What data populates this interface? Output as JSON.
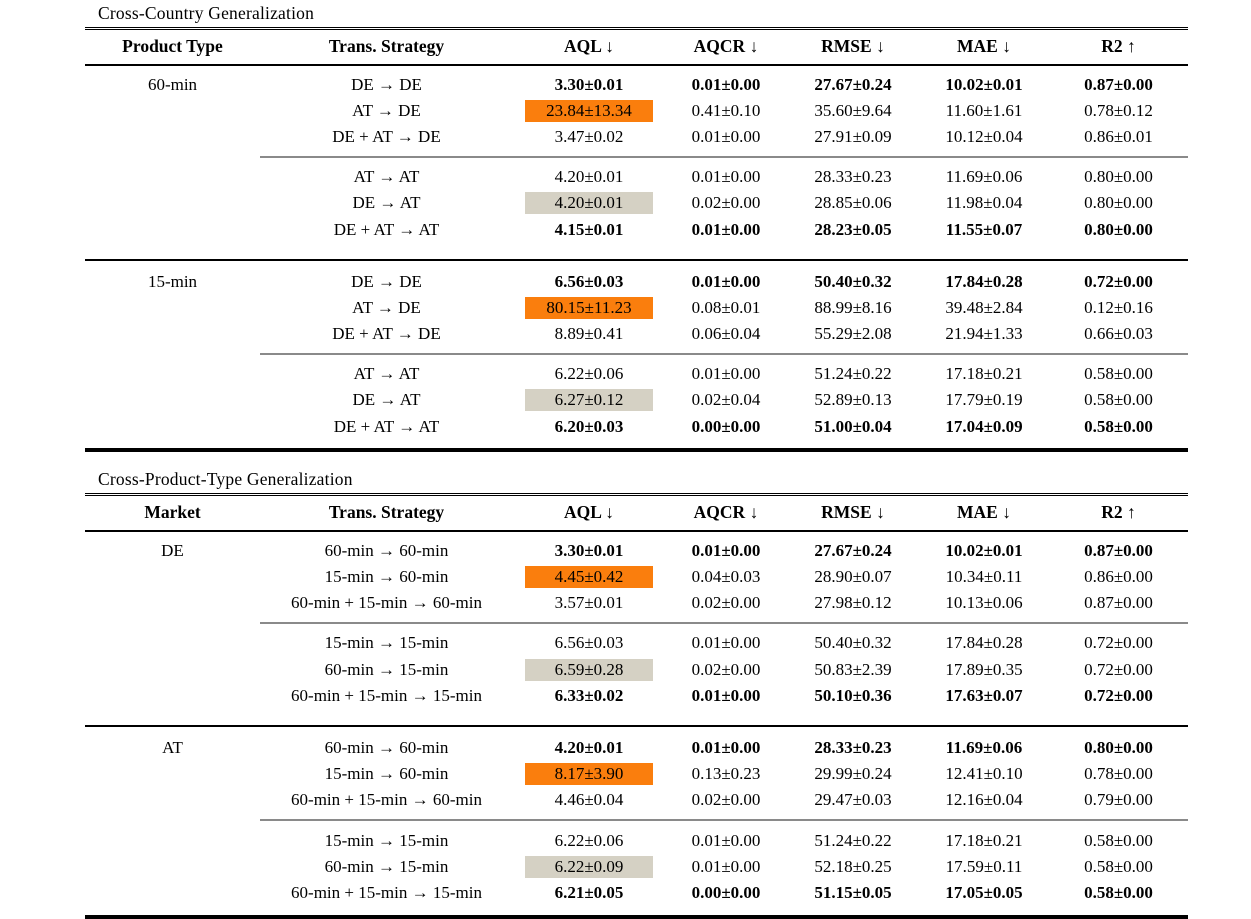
{
  "page": {
    "background": "#ffffff"
  },
  "colors": {
    "highlight_orange": "#fa7e0d",
    "highlight_gray": "#d5d1c4",
    "rule_black": "#000000",
    "rule_gray": "#8a8a8a"
  },
  "tables": [
    {
      "title": "Cross-Country Generalization",
      "columns": [
        "Product Type",
        "Trans. Strategy",
        "AQL ↓",
        "AQCR ↓",
        "RMSE ↓",
        "MAE ↓",
        "R2 ↑"
      ],
      "sections": [
        {
          "label": "60-min",
          "groups": [
            {
              "rows": [
                {
                  "strategy": "DE → DE",
                  "values": [
                    "3.30±0.01",
                    "0.01±0.00",
                    "27.67±0.24",
                    "10.02±0.01",
                    "0.87±0.00"
                  ],
                  "styles": [
                    "bold",
                    "bold",
                    "bold",
                    "bold",
                    "bold"
                  ]
                },
                {
                  "strategy": "AT → DE",
                  "values": [
                    "23.84±13.34",
                    "0.41±0.10",
                    "35.60±9.64",
                    "11.60±1.61",
                    "0.78±0.12"
                  ],
                  "styles": [
                    "hl-orange",
                    "",
                    "",
                    "",
                    ""
                  ]
                },
                {
                  "strategy": "DE + AT → DE",
                  "values": [
                    "3.47±0.02",
                    "0.01±0.00",
                    "27.91±0.09",
                    "10.12±0.04",
                    "0.86±0.01"
                  ],
                  "styles": [
                    "",
                    "",
                    "",
                    "",
                    ""
                  ]
                }
              ]
            },
            {
              "rows": [
                {
                  "strategy": "AT → AT",
                  "values": [
                    "4.20±0.01",
                    "0.01±0.00",
                    "28.33±0.23",
                    "11.69±0.06",
                    "0.80±0.00"
                  ],
                  "styles": [
                    "",
                    "",
                    "",
                    "",
                    ""
                  ]
                },
                {
                  "strategy": "DE → AT",
                  "values": [
                    "4.20±0.01",
                    "0.02±0.00",
                    "28.85±0.06",
                    "11.98±0.04",
                    "0.80±0.00"
                  ],
                  "styles": [
                    "hl-gray",
                    "",
                    "",
                    "",
                    ""
                  ]
                },
                {
                  "strategy": "DE + AT → AT",
                  "values": [
                    "4.15±0.01",
                    "0.01±0.00",
                    "28.23±0.05",
                    "11.55±0.07",
                    "0.80±0.00"
                  ],
                  "styles": [
                    "bold",
                    "bold",
                    "bold",
                    "bold",
                    "bold"
                  ]
                }
              ]
            }
          ]
        },
        {
          "label": "15-min",
          "groups": [
            {
              "rows": [
                {
                  "strategy": "DE → DE",
                  "values": [
                    "6.56±0.03",
                    "0.01±0.00",
                    "50.40±0.32",
                    "17.84±0.28",
                    "0.72±0.00"
                  ],
                  "styles": [
                    "bold",
                    "bold",
                    "bold",
                    "bold",
                    "bold"
                  ]
                },
                {
                  "strategy": "AT → DE",
                  "values": [
                    "80.15±11.23",
                    "0.08±0.01",
                    "88.99±8.16",
                    "39.48±2.84",
                    "0.12±0.16"
                  ],
                  "styles": [
                    "hl-orange",
                    "",
                    "",
                    "",
                    ""
                  ]
                },
                {
                  "strategy": "DE + AT → DE",
                  "values": [
                    "8.89±0.41",
                    "0.06±0.04",
                    "55.29±2.08",
                    "21.94±1.33",
                    "0.66±0.03"
                  ],
                  "styles": [
                    "",
                    "",
                    "",
                    "",
                    ""
                  ]
                }
              ]
            },
            {
              "rows": [
                {
                  "strategy": "AT → AT",
                  "values": [
                    "6.22±0.06",
                    "0.01±0.00",
                    "51.24±0.22",
                    "17.18±0.21",
                    "0.58±0.00"
                  ],
                  "styles": [
                    "",
                    "",
                    "",
                    "",
                    ""
                  ]
                },
                {
                  "strategy": "DE → AT",
                  "values": [
                    "6.27±0.12",
                    "0.02±0.04",
                    "52.89±0.13",
                    "17.79±0.19",
                    "0.58±0.00"
                  ],
                  "styles": [
                    "hl-gray",
                    "",
                    "",
                    "",
                    ""
                  ]
                },
                {
                  "strategy": "DE + AT → AT",
                  "values": [
                    "6.20±0.03",
                    "0.00±0.00",
                    "51.00±0.04",
                    "17.04±0.09",
                    "0.58±0.00"
                  ],
                  "styles": [
                    "bold",
                    "bold",
                    "bold",
                    "bold",
                    "bold"
                  ]
                }
              ]
            }
          ]
        }
      ]
    },
    {
      "title": "Cross-Product-Type Generalization",
      "columns": [
        "Market",
        "Trans. Strategy",
        "AQL ↓",
        "AQCR ↓",
        "RMSE ↓",
        "MAE ↓",
        "R2 ↑"
      ],
      "sections": [
        {
          "label": "DE",
          "groups": [
            {
              "rows": [
                {
                  "strategy": "60-min → 60-min",
                  "values": [
                    "3.30±0.01",
                    "0.01±0.00",
                    "27.67±0.24",
                    "10.02±0.01",
                    "0.87±0.00"
                  ],
                  "styles": [
                    "bold",
                    "bold",
                    "bold",
                    "bold",
                    "bold"
                  ]
                },
                {
                  "strategy": "15-min → 60-min",
                  "values": [
                    "4.45±0.42",
                    "0.04±0.03",
                    "28.90±0.07",
                    "10.34±0.11",
                    "0.86±0.00"
                  ],
                  "styles": [
                    "hl-orange",
                    "",
                    "",
                    "",
                    ""
                  ]
                },
                {
                  "strategy": "60-min + 15-min → 60-min",
                  "values": [
                    "3.57±0.01",
                    "0.02±0.00",
                    "27.98±0.12",
                    "10.13±0.06",
                    "0.87±0.00"
                  ],
                  "styles": [
                    "",
                    "",
                    "",
                    "",
                    ""
                  ]
                }
              ]
            },
            {
              "rows": [
                {
                  "strategy": "15-min → 15-min",
                  "values": [
                    "6.56±0.03",
                    "0.01±0.00",
                    "50.40±0.32",
                    "17.84±0.28",
                    "0.72±0.00"
                  ],
                  "styles": [
                    "",
                    "",
                    "",
                    "",
                    ""
                  ]
                },
                {
                  "strategy": "60-min → 15-min",
                  "values": [
                    "6.59±0.28",
                    "0.02±0.00",
                    "50.83±2.39",
                    "17.89±0.35",
                    "0.72±0.00"
                  ],
                  "styles": [
                    "hl-gray",
                    "",
                    "",
                    "",
                    ""
                  ]
                },
                {
                  "strategy": "60-min + 15-min → 15-min",
                  "values": [
                    "6.33±0.02",
                    "0.01±0.00",
                    "50.10±0.36",
                    "17.63±0.07",
                    "0.72±0.00"
                  ],
                  "styles": [
                    "bold",
                    "bold",
                    "bold",
                    "bold",
                    "bold"
                  ]
                }
              ]
            }
          ]
        },
        {
          "label": "AT",
          "groups": [
            {
              "rows": [
                {
                  "strategy": "60-min → 60-min",
                  "values": [
                    "4.20±0.01",
                    "0.01±0.00",
                    "28.33±0.23",
                    "11.69±0.06",
                    "0.80±0.00"
                  ],
                  "styles": [
                    "bold",
                    "bold",
                    "bold",
                    "bold",
                    "bold"
                  ]
                },
                {
                  "strategy": "15-min → 60-min",
                  "values": [
                    "8.17±3.90",
                    "0.13±0.23",
                    "29.99±0.24",
                    "12.41±0.10",
                    "0.78±0.00"
                  ],
                  "styles": [
                    "hl-orange",
                    "",
                    "",
                    "",
                    ""
                  ]
                },
                {
                  "strategy": "60-min + 15-min → 60-min",
                  "values": [
                    "4.46±0.04",
                    "0.02±0.00",
                    "29.47±0.03",
                    "12.16±0.04",
                    "0.79±0.00"
                  ],
                  "styles": [
                    "",
                    "",
                    "",
                    "",
                    ""
                  ]
                }
              ]
            },
            {
              "rows": [
                {
                  "strategy": "15-min → 15-min",
                  "values": [
                    "6.22±0.06",
                    "0.01±0.00",
                    "51.24±0.22",
                    "17.18±0.21",
                    "0.58±0.00"
                  ],
                  "styles": [
                    "",
                    "",
                    "",
                    "",
                    ""
                  ]
                },
                {
                  "strategy": "60-min → 15-min",
                  "values": [
                    "6.22±0.09",
                    "0.01±0.00",
                    "52.18±0.25",
                    "17.59±0.11",
                    "0.58±0.00"
                  ],
                  "styles": [
                    "hl-gray",
                    "",
                    "",
                    "",
                    ""
                  ]
                },
                {
                  "strategy": "60-min + 15-min → 15-min",
                  "values": [
                    "6.21±0.05",
                    "0.00±0.00",
                    "51.15±0.05",
                    "17.05±0.05",
                    "0.58±0.00"
                  ],
                  "styles": [
                    "bold",
                    "bold",
                    "bold",
                    "bold",
                    "bold"
                  ]
                }
              ]
            }
          ]
        }
      ]
    }
  ]
}
